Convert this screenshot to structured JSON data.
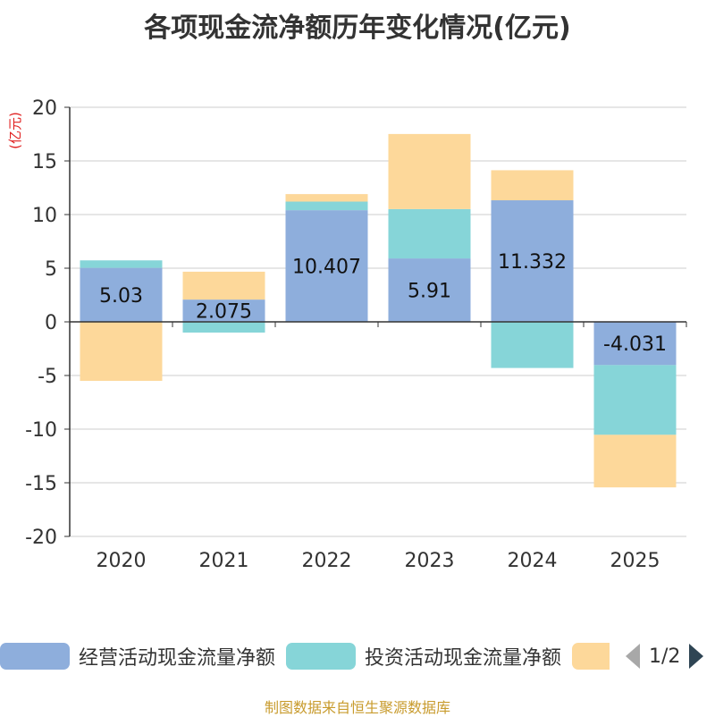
{
  "title": "各项现金流净额历年变化情况(亿元)",
  "source": "制图数据来自恒生聚源数据库",
  "legend": {
    "page": "1/2"
  },
  "colors": {
    "operating": "#8eaedc",
    "investing": "#86d5d8",
    "financing": "#fdd89a",
    "axis": "#333333",
    "grid": "#cccccc",
    "unit": "#e02020"
  },
  "chart_data": {
    "type": "bar",
    "stacked": true,
    "title": "各项现金流净额历年变化情况(亿元)",
    "ylabel": "(亿元)",
    "ylim": [
      -20,
      20
    ],
    "yticks": [
      20,
      15,
      10,
      5,
      0,
      -5,
      -10,
      -15,
      -20
    ],
    "categories": [
      "2020",
      "2021",
      "2022",
      "2023",
      "2024",
      "2025"
    ],
    "series": [
      {
        "name": "经营活动现金流量净额",
        "values": [
          5.03,
          2.075,
          10.407,
          5.91,
          11.332,
          -4.031
        ],
        "labels": [
          "5.03",
          "2.075",
          "10.407",
          "5.91",
          "11.332",
          "-4.031"
        ]
      },
      {
        "name": "投资活动现金流量净额",
        "values": [
          0.7,
          -1.0,
          0.8,
          4.6,
          -4.3,
          -6.5
        ]
      },
      {
        "name": "",
        "values": [
          -5.5,
          2.6,
          0.7,
          7.0,
          2.8,
          -4.9
        ]
      }
    ]
  }
}
